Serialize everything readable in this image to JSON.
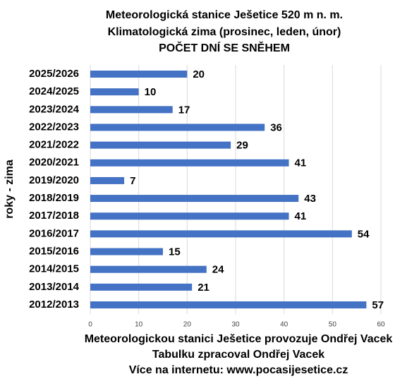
{
  "chart_data": {
    "type": "hbar",
    "title": [
      "Meteorologická stanice Ješetice 520 m n. m.",
      "Klimatologická zima (prosinec, leden, únor)",
      "POČET DNÍ SE SNĚHEM"
    ],
    "ylabel": "roky - zima",
    "notes": [
      "Meteorologickou stanici Ješetice provozuje Ondřej Vacek",
      "Tabulku zpracoval Ondřej Vacek",
      "Více na internetu: www.pocasijesetice.cz"
    ],
    "categories": [
      "2025/2026",
      "2024/2025",
      "2023/2024",
      "2022/2023",
      "2021/2022",
      "2020/2021",
      "2019/2020",
      "2018/2019",
      "2017/2018",
      "2016/2017",
      "2015/2016",
      "2014/2015",
      "2013/2014",
      "2012/2013"
    ],
    "values": [
      20,
      10,
      17,
      36,
      29,
      41,
      7,
      43,
      41,
      54,
      15,
      24,
      21,
      57
    ],
    "color": "#4472c4",
    "xlim": [
      0,
      60
    ],
    "xticks": [
      0,
      10,
      20,
      30,
      40,
      50,
      60
    ],
    "grid": true
  }
}
